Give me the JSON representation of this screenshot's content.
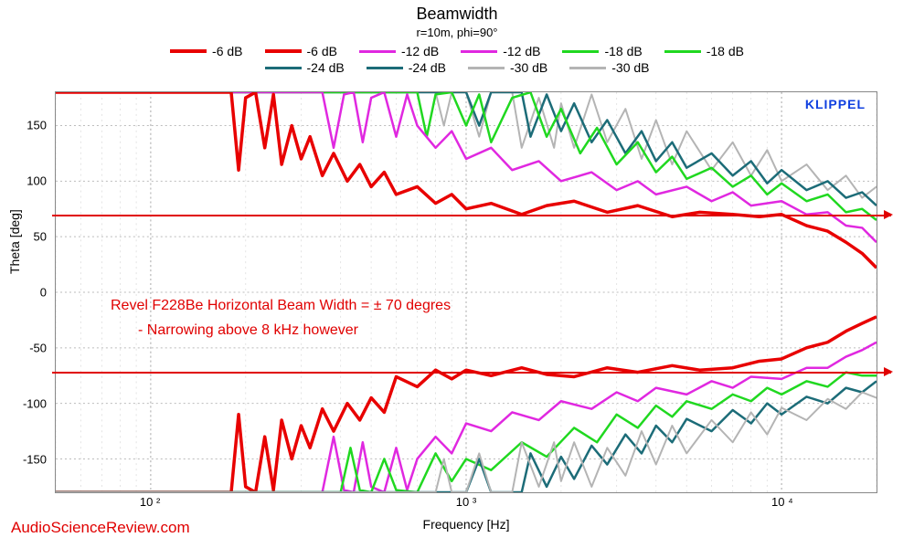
{
  "title": "Beamwidth",
  "subtitle": "r=10m, phi=90°",
  "xlabel": "Frequency [Hz]",
  "ylabel": "Theta [deg]",
  "watermark": "AudioScienceReview.com",
  "klippel": "KLIPPEL",
  "annot1": "Revel F228Be Horizontal Beam Width = ± 70 degres",
  "annot2": "- Narrowing above 8 kHz however",
  "annot_color": "#e00000",
  "annot_fontsize": 16,
  "plot_bg": "#ffffff",
  "grid_color": "#bbbbbb",
  "grid_minor_color": "#dddddd",
  "axis_color": "#888888",
  "klippel_color": "#1040e0",
  "ylim": [
    -180,
    180
  ],
  "ytick_step": 50,
  "yticks": [
    -150,
    -100,
    -50,
    0,
    50,
    100,
    150
  ],
  "xscale": "log",
  "xlim_hz": [
    50,
    20000
  ],
  "xtick_major_hz": [
    100,
    1000,
    10000
  ],
  "xtick_labels": [
    "10 ²",
    "10 ³",
    "10 ⁴"
  ],
  "ref_lines_deg": [
    70,
    -70
  ],
  "ref_line_color": "#e00000",
  "legend": {
    "rows": [
      [
        {
          "color": "#e80000",
          "label": "-6 dB",
          "thick": 4
        },
        {
          "color": "#e80000",
          "label": "-6 dB",
          "thick": 4
        },
        {
          "color": "#e028e0",
          "label": "-12 dB",
          "thick": 3
        },
        {
          "color": "#e028e0",
          "label": "-12 dB",
          "thick": 3
        },
        {
          "color": "#20d820",
          "label": "-18 dB",
          "thick": 3
        },
        {
          "color": "#20d820",
          "label": "-18 dB",
          "thick": 3
        }
      ],
      [
        {
          "color": "#1c6c78",
          "label": "-24 dB",
          "thick": 3
        },
        {
          "color": "#1c6c78",
          "label": "-24 dB",
          "thick": 3
        },
        {
          "color": "#b4b4b4",
          "label": "-30 dB",
          "thick": 3
        },
        {
          "color": "#b4b4b4",
          "label": "-30 dB",
          "thick": 3
        }
      ]
    ]
  },
  "series": [
    {
      "name": "-30 dB upper",
      "color": "#b4b4b4",
      "width": 2,
      "points_hz_deg": [
        [
          50,
          180
        ],
        [
          800,
          180
        ],
        [
          850,
          150
        ],
        [
          900,
          180
        ],
        [
          1000,
          180
        ],
        [
          1100,
          140
        ],
        [
          1200,
          180
        ],
        [
          1400,
          180
        ],
        [
          1500,
          130
        ],
        [
          1700,
          175
        ],
        [
          1900,
          130
        ],
        [
          2000,
          170
        ],
        [
          2200,
          130
        ],
        [
          2500,
          178
        ],
        [
          2800,
          135
        ],
        [
          3200,
          165
        ],
        [
          3600,
          120
        ],
        [
          4000,
          155
        ],
        [
          4500,
          115
        ],
        [
          5000,
          145
        ],
        [
          6000,
          110
        ],
        [
          7000,
          135
        ],
        [
          8000,
          105
        ],
        [
          9000,
          128
        ],
        [
          10000,
          100
        ],
        [
          12000,
          115
        ],
        [
          14000,
          92
        ],
        [
          16000,
          105
        ],
        [
          18000,
          85
        ],
        [
          20000,
          95
        ]
      ]
    },
    {
      "name": "-24 dB upper",
      "color": "#1c6c78",
      "width": 2.5,
      "points_hz_deg": [
        [
          50,
          180
        ],
        [
          1000,
          180
        ],
        [
          1100,
          150
        ],
        [
          1200,
          180
        ],
        [
          1500,
          180
        ],
        [
          1600,
          140
        ],
        [
          1800,
          178
        ],
        [
          2000,
          145
        ],
        [
          2200,
          170
        ],
        [
          2500,
          135
        ],
        [
          2800,
          155
        ],
        [
          3200,
          125
        ],
        [
          3600,
          145
        ],
        [
          4000,
          118
        ],
        [
          4500,
          135
        ],
        [
          5000,
          112
        ],
        [
          6000,
          125
        ],
        [
          7000,
          105
        ],
        [
          8000,
          118
        ],
        [
          9000,
          98
        ],
        [
          10000,
          110
        ],
        [
          12000,
          92
        ],
        [
          14000,
          100
        ],
        [
          16000,
          85
        ],
        [
          18000,
          90
        ],
        [
          20000,
          78
        ]
      ]
    },
    {
      "name": "-18 dB upper",
      "color": "#20d820",
      "width": 2.5,
      "points_hz_deg": [
        [
          50,
          180
        ],
        [
          700,
          180
        ],
        [
          750,
          140
        ],
        [
          800,
          178
        ],
        [
          900,
          180
        ],
        [
          1000,
          150
        ],
        [
          1100,
          178
        ],
        [
          1200,
          135
        ],
        [
          1400,
          175
        ],
        [
          1600,
          180
        ],
        [
          1800,
          140
        ],
        [
          2000,
          165
        ],
        [
          2300,
          125
        ],
        [
          2600,
          148
        ],
        [
          3000,
          115
        ],
        [
          3500,
          135
        ],
        [
          4000,
          108
        ],
        [
          4500,
          122
        ],
        [
          5000,
          102
        ],
        [
          6000,
          112
        ],
        [
          7000,
          95
        ],
        [
          8000,
          105
        ],
        [
          9000,
          88
        ],
        [
          10000,
          98
        ],
        [
          12000,
          82
        ],
        [
          14000,
          88
        ],
        [
          16000,
          72
        ],
        [
          18000,
          75
        ],
        [
          20000,
          65
        ]
      ]
    },
    {
      "name": "-12 dB upper",
      "color": "#e028e0",
      "width": 2.5,
      "points_hz_deg": [
        [
          50,
          180
        ],
        [
          350,
          180
        ],
        [
          380,
          130
        ],
        [
          410,
          178
        ],
        [
          440,
          180
        ],
        [
          470,
          135
        ],
        [
          500,
          175
        ],
        [
          550,
          180
        ],
        [
          600,
          140
        ],
        [
          650,
          178
        ],
        [
          700,
          150
        ],
        [
          800,
          130
        ],
        [
          900,
          145
        ],
        [
          1000,
          120
        ],
        [
          1200,
          130
        ],
        [
          1400,
          110
        ],
        [
          1700,
          118
        ],
        [
          2000,
          100
        ],
        [
          2500,
          108
        ],
        [
          3000,
          92
        ],
        [
          3500,
          100
        ],
        [
          4000,
          88
        ],
        [
          5000,
          95
        ],
        [
          6000,
          82
        ],
        [
          7000,
          90
        ],
        [
          8000,
          78
        ],
        [
          10000,
          82
        ],
        [
          12000,
          70
        ],
        [
          14000,
          72
        ],
        [
          16000,
          60
        ],
        [
          18000,
          58
        ],
        [
          20000,
          45
        ]
      ]
    },
    {
      "name": "-6 dB upper",
      "color": "#e80000",
      "width": 3.5,
      "points_hz_deg": [
        [
          50,
          180
        ],
        [
          180,
          180
        ],
        [
          190,
          110
        ],
        [
          200,
          175
        ],
        [
          215,
          180
        ],
        [
          230,
          130
        ],
        [
          245,
          178
        ],
        [
          260,
          115
        ],
        [
          280,
          150
        ],
        [
          300,
          120
        ],
        [
          320,
          140
        ],
        [
          350,
          105
        ],
        [
          380,
          125
        ],
        [
          420,
          100
        ],
        [
          460,
          115
        ],
        [
          500,
          95
        ],
        [
          550,
          108
        ],
        [
          600,
          88
        ],
        [
          700,
          95
        ],
        [
          800,
          80
        ],
        [
          900,
          88
        ],
        [
          1000,
          75
        ],
        [
          1200,
          80
        ],
        [
          1500,
          70
        ],
        [
          1800,
          78
        ],
        [
          2200,
          82
        ],
        [
          2800,
          72
        ],
        [
          3500,
          78
        ],
        [
          4500,
          68
        ],
        [
          5500,
          72
        ],
        [
          7000,
          70
        ],
        [
          8500,
          68
        ],
        [
          10000,
          70
        ],
        [
          12000,
          60
        ],
        [
          14000,
          55
        ],
        [
          16000,
          45
        ],
        [
          18000,
          35
        ],
        [
          20000,
          22
        ]
      ]
    },
    {
      "name": "-6 dB lower",
      "color": "#e80000",
      "width": 3.5,
      "points_hz_deg": [
        [
          50,
          -180
        ],
        [
          180,
          -180
        ],
        [
          190,
          -110
        ],
        [
          200,
          -175
        ],
        [
          215,
          -180
        ],
        [
          230,
          -130
        ],
        [
          245,
          -178
        ],
        [
          260,
          -115
        ],
        [
          280,
          -150
        ],
        [
          300,
          -120
        ],
        [
          320,
          -140
        ],
        [
          350,
          -105
        ],
        [
          380,
          -125
        ],
        [
          420,
          -100
        ],
        [
          460,
          -115
        ],
        [
          500,
          -95
        ],
        [
          550,
          -108
        ],
        [
          600,
          -76
        ],
        [
          700,
          -85
        ],
        [
          800,
          -70
        ],
        [
          900,
          -78
        ],
        [
          1000,
          -70
        ],
        [
          1200,
          -75
        ],
        [
          1500,
          -68
        ],
        [
          1800,
          -74
        ],
        [
          2200,
          -76
        ],
        [
          2800,
          -68
        ],
        [
          3500,
          -72
        ],
        [
          4500,
          -66
        ],
        [
          5500,
          -70
        ],
        [
          7000,
          -68
        ],
        [
          8500,
          -62
        ],
        [
          10000,
          -60
        ],
        [
          12000,
          -50
        ],
        [
          14000,
          -45
        ],
        [
          16000,
          -35
        ],
        [
          18000,
          -28
        ],
        [
          20000,
          -22
        ]
      ]
    },
    {
      "name": "-12 dB lower",
      "color": "#e028e0",
      "width": 2.5,
      "points_hz_deg": [
        [
          50,
          -180
        ],
        [
          350,
          -180
        ],
        [
          380,
          -130
        ],
        [
          410,
          -178
        ],
        [
          440,
          -180
        ],
        [
          470,
          -135
        ],
        [
          500,
          -175
        ],
        [
          550,
          -180
        ],
        [
          600,
          -140
        ],
        [
          650,
          -178
        ],
        [
          700,
          -150
        ],
        [
          800,
          -130
        ],
        [
          900,
          -145
        ],
        [
          1000,
          -118
        ],
        [
          1200,
          -125
        ],
        [
          1400,
          -108
        ],
        [
          1700,
          -115
        ],
        [
          2000,
          -98
        ],
        [
          2500,
          -105
        ],
        [
          3000,
          -90
        ],
        [
          3500,
          -98
        ],
        [
          4000,
          -86
        ],
        [
          5000,
          -92
        ],
        [
          6000,
          -80
        ],
        [
          7000,
          -86
        ],
        [
          8000,
          -76
        ],
        [
          10000,
          -78
        ],
        [
          12000,
          -68
        ],
        [
          14000,
          -68
        ],
        [
          16000,
          -58
        ],
        [
          18000,
          -52
        ],
        [
          20000,
          -45
        ]
      ]
    },
    {
      "name": "-18 dB lower",
      "color": "#20d820",
      "width": 2.5,
      "points_hz_deg": [
        [
          50,
          -180
        ],
        [
          400,
          -180
        ],
        [
          430,
          -140
        ],
        [
          460,
          -178
        ],
        [
          500,
          -180
        ],
        [
          550,
          -150
        ],
        [
          600,
          -178
        ],
        [
          700,
          -180
        ],
        [
          800,
          -145
        ],
        [
          900,
          -170
        ],
        [
          1000,
          -150
        ],
        [
          1200,
          -160
        ],
        [
          1500,
          -135
        ],
        [
          1800,
          -148
        ],
        [
          2200,
          -122
        ],
        [
          2600,
          -135
        ],
        [
          3000,
          -110
        ],
        [
          3500,
          -122
        ],
        [
          4000,
          -102
        ],
        [
          4500,
          -112
        ],
        [
          5000,
          -98
        ],
        [
          6000,
          -105
        ],
        [
          7000,
          -92
        ],
        [
          8000,
          -98
        ],
        [
          9000,
          -86
        ],
        [
          10000,
          -92
        ],
        [
          12000,
          -80
        ],
        [
          14000,
          -85
        ],
        [
          16000,
          -72
        ],
        [
          18000,
          -75
        ],
        [
          20000,
          -75
        ]
      ]
    },
    {
      "name": "-24 dB lower",
      "color": "#1c6c78",
      "width": 2.5,
      "points_hz_deg": [
        [
          50,
          -180
        ],
        [
          1000,
          -180
        ],
        [
          1100,
          -150
        ],
        [
          1200,
          -180
        ],
        [
          1500,
          -180
        ],
        [
          1600,
          -145
        ],
        [
          1800,
          -175
        ],
        [
          2000,
          -148
        ],
        [
          2200,
          -168
        ],
        [
          2500,
          -138
        ],
        [
          2800,
          -155
        ],
        [
          3200,
          -128
        ],
        [
          3600,
          -145
        ],
        [
          4000,
          -120
        ],
        [
          4500,
          -135
        ],
        [
          5000,
          -114
        ],
        [
          6000,
          -125
        ],
        [
          7000,
          -106
        ],
        [
          8000,
          -118
        ],
        [
          9000,
          -100
        ],
        [
          10000,
          -110
        ],
        [
          12000,
          -94
        ],
        [
          14000,
          -100
        ],
        [
          16000,
          -86
        ],
        [
          18000,
          -90
        ],
        [
          20000,
          -80
        ]
      ]
    },
    {
      "name": "-30 dB lower",
      "color": "#b4b4b4",
      "width": 2,
      "points_hz_deg": [
        [
          50,
          -180
        ],
        [
          800,
          -180
        ],
        [
          850,
          -150
        ],
        [
          900,
          -180
        ],
        [
          1000,
          -180
        ],
        [
          1100,
          -145
        ],
        [
          1200,
          -180
        ],
        [
          1400,
          -180
        ],
        [
          1500,
          -135
        ],
        [
          1700,
          -175
        ],
        [
          1900,
          -135
        ],
        [
          2000,
          -170
        ],
        [
          2200,
          -135
        ],
        [
          2500,
          -175
        ],
        [
          2800,
          -140
        ],
        [
          3200,
          -165
        ],
        [
          3600,
          -125
        ],
        [
          4000,
          -155
        ],
        [
          4500,
          -120
        ],
        [
          5000,
          -145
        ],
        [
          6000,
          -115
        ],
        [
          7000,
          -135
        ],
        [
          8000,
          -108
        ],
        [
          9000,
          -128
        ],
        [
          10000,
          -104
        ],
        [
          12000,
          -115
        ],
        [
          14000,
          -96
        ],
        [
          16000,
          -105
        ],
        [
          18000,
          -90
        ],
        [
          20000,
          -95
        ]
      ]
    }
  ]
}
